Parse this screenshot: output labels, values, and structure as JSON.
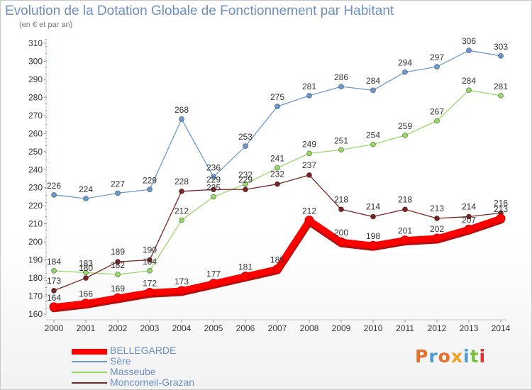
{
  "header": {
    "title": "Evolution de la Dotation Globale de Fonctionnement par Habitant",
    "subtitle": "(en € et par an)"
  },
  "brand": {
    "text": "Proxiti",
    "colors": [
      "#e8702a",
      "#4a9ad6",
      "#e8702a",
      "#f0a020",
      "#4a9ad6",
      "#7bbf3a",
      "#e03030"
    ]
  },
  "legend_position": "bottom-left",
  "chart_data": {
    "type": "line",
    "x": [
      2000,
      2001,
      2002,
      2003,
      2004,
      2005,
      2006,
      2007,
      2008,
      2009,
      2010,
      2011,
      2012,
      2013,
      2014
    ],
    "ylim": [
      160,
      310
    ],
    "yticks": [
      160,
      170,
      180,
      190,
      200,
      210,
      220,
      230,
      240,
      250,
      260,
      270,
      280,
      290,
      300,
      310
    ],
    "grid": false,
    "series": [
      {
        "name": "Sère",
        "color": "#6a9ad0",
        "values": [
          226,
          224,
          227,
          229,
          268,
          236,
          253,
          275,
          281,
          286,
          284,
          294,
          297,
          306,
          303
        ]
      },
      {
        "name": "Masseube",
        "color": "#98d86a",
        "values": [
          184,
          183,
          182,
          184,
          212,
          225,
          232,
          241,
          249,
          251,
          254,
          259,
          267,
          284,
          281
        ]
      },
      {
        "name": "Moncorneil-Grazan",
        "color": "#7a2424",
        "values": [
          173,
          180,
          189,
          190,
          228,
          229,
          229,
          232,
          237,
          218,
          214,
          218,
          213,
          214,
          216
        ]
      },
      {
        "name": "BELLEGARDE",
        "color": "#ff0000",
        "values": [
          164,
          166,
          169,
          172,
          173,
          177,
          181,
          185,
          212,
          200,
          198,
          201,
          202,
          207,
          213
        ]
      }
    ]
  }
}
